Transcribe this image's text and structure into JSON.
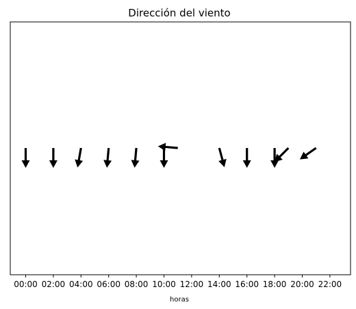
{
  "chart_data": {
    "type": "quiver",
    "title": "Dirección del viento",
    "xlabel": "horas",
    "ylabel": "",
    "grid": false,
    "x_ticks": [
      "00:00",
      "02:00",
      "04:00",
      "06:00",
      "08:00",
      "10:00",
      "12:00",
      "14:00",
      "16:00",
      "18:00",
      "20:00",
      "22:00"
    ],
    "arrow_color": "#000000",
    "arrows": [
      {
        "time": "00:00",
        "direction_deg": 0
      },
      {
        "time": "02:00",
        "direction_deg": 0
      },
      {
        "time": "04:00",
        "direction_deg": 10
      },
      {
        "time": "06:00",
        "direction_deg": 5
      },
      {
        "time": "08:00",
        "direction_deg": 5
      },
      {
        "time": "10:00",
        "direction_deg": 0
      },
      {
        "time": "11:00",
        "direction_deg": 95
      },
      {
        "time": "14:00",
        "direction_deg": 345
      },
      {
        "time": "16:00",
        "direction_deg": 0
      },
      {
        "time": "18:00",
        "direction_deg": 0
      },
      {
        "time": "19:00",
        "direction_deg": 45
      },
      {
        "time": "21:00",
        "direction_deg": 55
      }
    ]
  }
}
